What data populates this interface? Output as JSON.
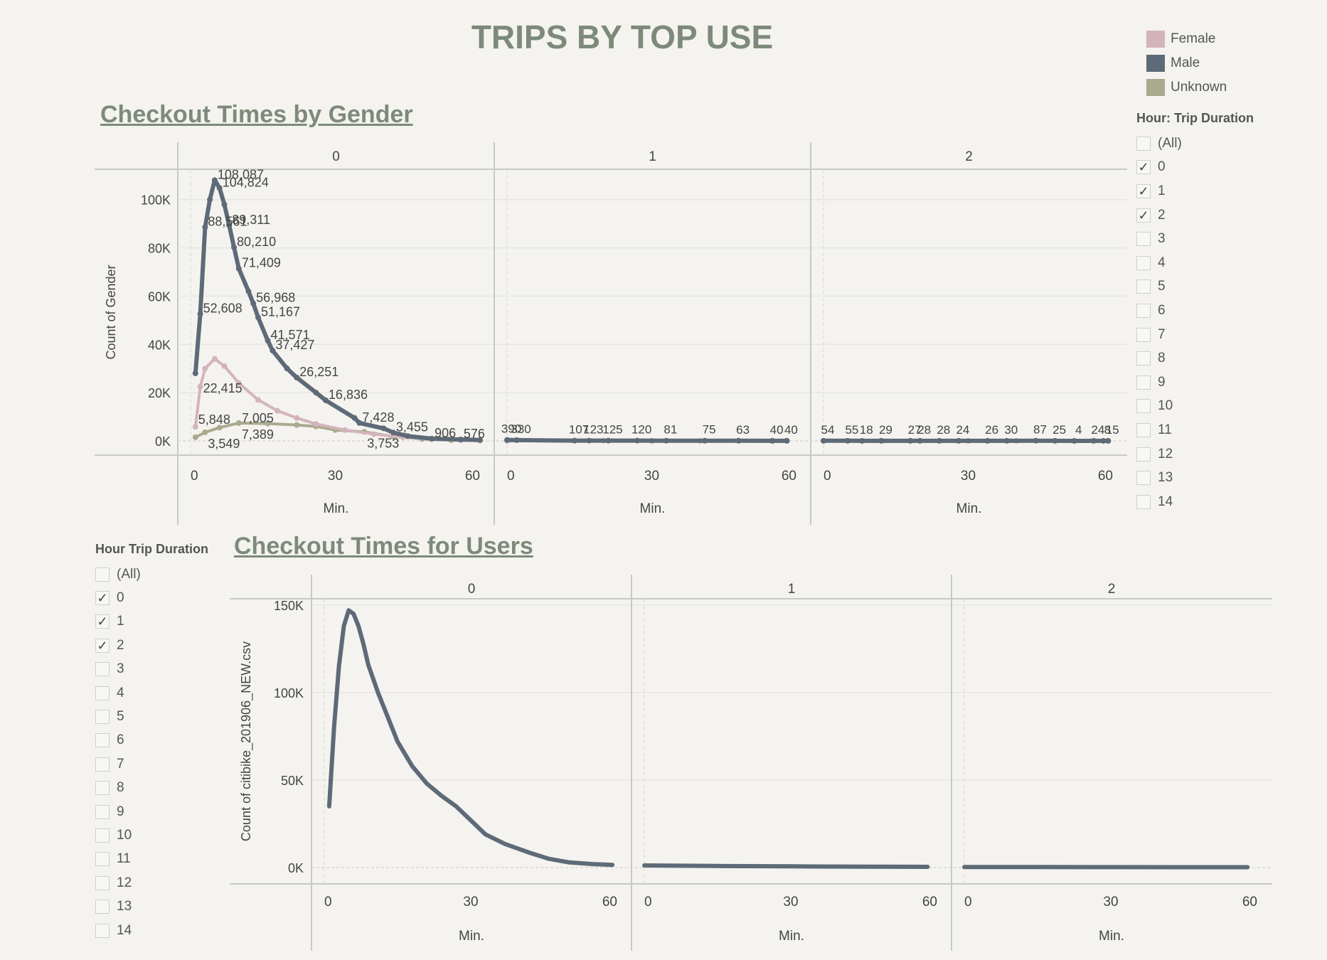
{
  "page_title": "TRIPS BY TOP USE",
  "legend": {
    "items": [
      {
        "label": "Female",
        "color": "#d3b4bc"
      },
      {
        "label": "Male",
        "color": "#5e6a77"
      },
      {
        "label": "Unknown",
        "color": "#a9aa8e"
      }
    ]
  },
  "filter_top": {
    "title": "Hour: Trip Duration",
    "options": [
      {
        "label": "(All)",
        "checked": false
      },
      {
        "label": "0",
        "checked": true
      },
      {
        "label": "1",
        "checked": true
      },
      {
        "label": "2",
        "checked": true
      },
      {
        "label": "3",
        "checked": false
      },
      {
        "label": "4",
        "checked": false
      },
      {
        "label": "5",
        "checked": false
      },
      {
        "label": "6",
        "checked": false
      },
      {
        "label": "7",
        "checked": false
      },
      {
        "label": "8",
        "checked": false
      },
      {
        "label": "9",
        "checked": false
      },
      {
        "label": "10",
        "checked": false
      },
      {
        "label": "11",
        "checked": false
      },
      {
        "label": "12",
        "checked": false
      },
      {
        "label": "13",
        "checked": false
      },
      {
        "label": "14",
        "checked": false
      }
    ]
  },
  "filter_bottom": {
    "title": "Hour Trip Duration",
    "options": [
      {
        "label": "(All)",
        "checked": false
      },
      {
        "label": "0",
        "checked": true
      },
      {
        "label": "1",
        "checked": true
      },
      {
        "label": "2",
        "checked": true
      },
      {
        "label": "3",
        "checked": false
      },
      {
        "label": "4",
        "checked": false
      },
      {
        "label": "5",
        "checked": false
      },
      {
        "label": "6",
        "checked": false
      },
      {
        "label": "7",
        "checked": false
      },
      {
        "label": "8",
        "checked": false
      },
      {
        "label": "9",
        "checked": false
      },
      {
        "label": "10",
        "checked": false
      },
      {
        "label": "11",
        "checked": false
      },
      {
        "label": "12",
        "checked": false
      },
      {
        "label": "13",
        "checked": false
      },
      {
        "label": "14",
        "checked": false
      }
    ]
  },
  "chart_data": [
    {
      "type": "line",
      "title": "Checkout Times by Gender",
      "ylabel": "Count of Gender",
      "xlabel": "Min.",
      "panels": [
        "0",
        "1",
        "2"
      ],
      "ylim": [
        0,
        112000
      ],
      "yticks": [
        0,
        20000,
        40000,
        60000,
        80000,
        100000
      ],
      "ytick_labels": [
        "0K",
        "20K",
        "40K",
        "60K",
        "80K",
        "100K"
      ],
      "xlim": [
        0,
        60
      ],
      "xticks": [
        0,
        30,
        60
      ],
      "series": [
        {
          "name": "Male",
          "color": "#5e6a77",
          "panels": [
            [
              [
                1,
                28000
              ],
              [
                2,
                52608
              ],
              [
                3,
                88561
              ],
              [
                4,
                100000
              ],
              [
                5,
                108087
              ],
              [
                6,
                104824
              ],
              [
                7,
                98000
              ],
              [
                8,
                89311
              ],
              [
                9,
                80210
              ],
              [
                10,
                71409
              ],
              [
                12,
                62000
              ],
              [
                13,
                56968
              ],
              [
                14,
                51167
              ],
              [
                16,
                41571
              ],
              [
                17,
                37427
              ],
              [
                20,
                30000
              ],
              [
                22,
                26251
              ],
              [
                26,
                20000
              ],
              [
                28,
                16836
              ],
              [
                34,
                9500
              ],
              [
                35,
                7428
              ],
              [
                40,
                5200
              ],
              [
                42,
                3455
              ],
              [
                45,
                2000
              ],
              [
                50,
                906
              ],
              [
                56,
                576
              ],
              [
                60,
                390
              ]
            ],
            [
              [
                0,
                390
              ],
              [
                2,
                330
              ],
              [
                14,
                107
              ],
              [
                17,
                123
              ],
              [
                21,
                125
              ],
              [
                27,
                120
              ],
              [
                33,
                81
              ],
              [
                41,
                75
              ],
              [
                48,
                63
              ],
              [
                55,
                40
              ],
              [
                58,
                40
              ]
            ],
            [
              [
                0,
                54
              ],
              [
                5,
                55
              ],
              [
                8,
                18
              ],
              [
                12,
                29
              ],
              [
                18,
                27
              ],
              [
                20,
                28
              ],
              [
                24,
                28
              ],
              [
                28,
                24
              ],
              [
                34,
                26
              ],
              [
                38,
                30
              ],
              [
                44,
                87
              ],
              [
                48,
                25
              ],
              [
                52,
                4
              ],
              [
                56,
                24
              ],
              [
                58,
                8
              ],
              [
                59,
                15
              ]
            ]
          ],
          "labels": [
            {
              "x": 5,
              "y": 108087,
              "text": "108,087"
            },
            {
              "x": 6,
              "y": 104824,
              "text": "104,824"
            },
            {
              "x": 3,
              "y": 88561,
              "text": "88,561"
            },
            {
              "x": 8,
              "y": 89311,
              "text": "89,311"
            },
            {
              "x": 9,
              "y": 80210,
              "text": "80,210"
            },
            {
              "x": 10,
              "y": 71409,
              "text": "71,409"
            },
            {
              "x": 2,
              "y": 52608,
              "text": "52,608"
            },
            {
              "x": 13,
              "y": 56968,
              "text": "56,968"
            },
            {
              "x": 14,
              "y": 51167,
              "text": "51,167"
            },
            {
              "x": 16,
              "y": 41571,
              "text": "41,571"
            },
            {
              "x": 17,
              "y": 37427,
              "text": "37,427"
            },
            {
              "x": 22,
              "y": 26251,
              "text": "26,251"
            },
            {
              "x": 28,
              "y": 16836,
              "text": "16,836"
            },
            {
              "x": 35,
              "y": 7428,
              "text": "7,428"
            },
            {
              "x": 42,
              "y": 3455,
              "text": "3,455"
            },
            {
              "x": 50,
              "y": 906,
              "text": "906"
            },
            {
              "x": 56,
              "y": 576,
              "text": "576"
            }
          ],
          "panel_labels": [
            [],
            [
              "390",
              "330",
              "107",
              "123",
              "125",
              "120",
              "81",
              "75",
              "63",
              "40",
              "40"
            ],
            [
              "54",
              "55",
              "18",
              "29",
              "27",
              "28",
              "28",
              "24",
              "26",
              "30",
              "87",
              "25",
              "4",
              "24",
              "8",
              "15"
            ]
          ]
        },
        {
          "name": "Female",
          "color": "#d3b4bc",
          "panels": [
            [
              [
                1,
                5848
              ],
              [
                2,
                22415
              ],
              [
                3,
                30000
              ],
              [
                5,
                34000
              ],
              [
                7,
                31000
              ],
              [
                10,
                24000
              ],
              [
                14,
                17000
              ],
              [
                18,
                12500
              ],
              [
                22,
                9500
              ],
              [
                26,
                7005
              ],
              [
                32,
                4500
              ],
              [
                38,
                2800
              ],
              [
                44,
                1500
              ],
              [
                50,
                700
              ],
              [
                56,
                300
              ],
              [
                60,
                150
              ]
            ],
            [
              [
                0,
                120
              ],
              [
                20,
                60
              ],
              [
                40,
                30
              ],
              [
                58,
                15
              ]
            ],
            [
              [
                0,
                20
              ],
              [
                20,
                12
              ],
              [
                40,
                8
              ],
              [
                59,
                5
              ]
            ]
          ],
          "labels": [
            {
              "x": 2,
              "y": 22415,
              "text": "22,415"
            },
            {
              "x": 1,
              "y": 5848,
              "text": "5,848"
            },
            {
              "x": 10,
              "y": 7005,
              "text": "7,005"
            }
          ]
        },
        {
          "name": "Unknown",
          "color": "#a9aa8e",
          "panels": [
            [
              [
                1,
                1500
              ],
              [
                3,
                3549
              ],
              [
                6,
                5500
              ],
              [
                10,
                7389
              ],
              [
                16,
                7200
              ],
              [
                22,
                6600
              ],
              [
                26,
                6000
              ],
              [
                30,
                4500
              ],
              [
                36,
                3753
              ],
              [
                42,
                1800
              ],
              [
                48,
                800
              ],
              [
                54,
                300
              ],
              [
                60,
                100
              ]
            ],
            [
              [
                0,
                50
              ],
              [
                30,
                20
              ],
              [
                58,
                8
              ]
            ],
            [
              [
                0,
                10
              ],
              [
                30,
                5
              ],
              [
                59,
                3
              ]
            ]
          ],
          "labels": [
            {
              "x": 3,
              "y": 3549,
              "text": "3,549"
            },
            {
              "x": 10,
              "y": 7389,
              "text": "7,389"
            },
            {
              "x": 36,
              "y": 3753,
              "text": "3,753"
            }
          ]
        }
      ]
    },
    {
      "type": "line",
      "title": "Checkout Times for Users",
      "ylabel": "Count of citibike_201906_NEW.csv",
      "xlabel": "Min.",
      "panels": [
        "0",
        "1",
        "2"
      ],
      "ylim": [
        0,
        152000
      ],
      "yticks": [
        0,
        50000,
        100000,
        150000
      ],
      "ytick_labels": [
        "0K",
        "50K",
        "100K",
        "150K"
      ],
      "xlim": [
        0,
        60
      ],
      "xticks": [
        0,
        30,
        60
      ],
      "series": [
        {
          "name": "Users",
          "color": "#5e6a77",
          "panels": [
            [
              [
                1,
                35000
              ],
              [
                2,
                80000
              ],
              [
                3,
                115000
              ],
              [
                4,
                138000
              ],
              [
                5,
                147000
              ],
              [
                6,
                145000
              ],
              [
                7,
                138000
              ],
              [
                8,
                128000
              ],
              [
                9,
                116000
              ],
              [
                11,
                100000
              ],
              [
                13,
                86000
              ],
              [
                15,
                72000
              ],
              [
                18,
                58000
              ],
              [
                21,
                48000
              ],
              [
                24,
                41000
              ],
              [
                27,
                35000
              ],
              [
                30,
                27000
              ],
              [
                33,
                19000
              ],
              [
                37,
                13500
              ],
              [
                42,
                8500
              ],
              [
                46,
                5000
              ],
              [
                50,
                3000
              ],
              [
                55,
                2000
              ],
              [
                59,
                1500
              ]
            ],
            [
              [
                0,
                1200
              ],
              [
                15,
                900
              ],
              [
                30,
                700
              ],
              [
                45,
                500
              ],
              [
                58,
                400
              ]
            ],
            [
              [
                0,
                300
              ],
              [
                15,
                280
              ],
              [
                30,
                250
              ],
              [
                45,
                220
              ],
              [
                58,
                200
              ]
            ]
          ]
        }
      ]
    }
  ]
}
